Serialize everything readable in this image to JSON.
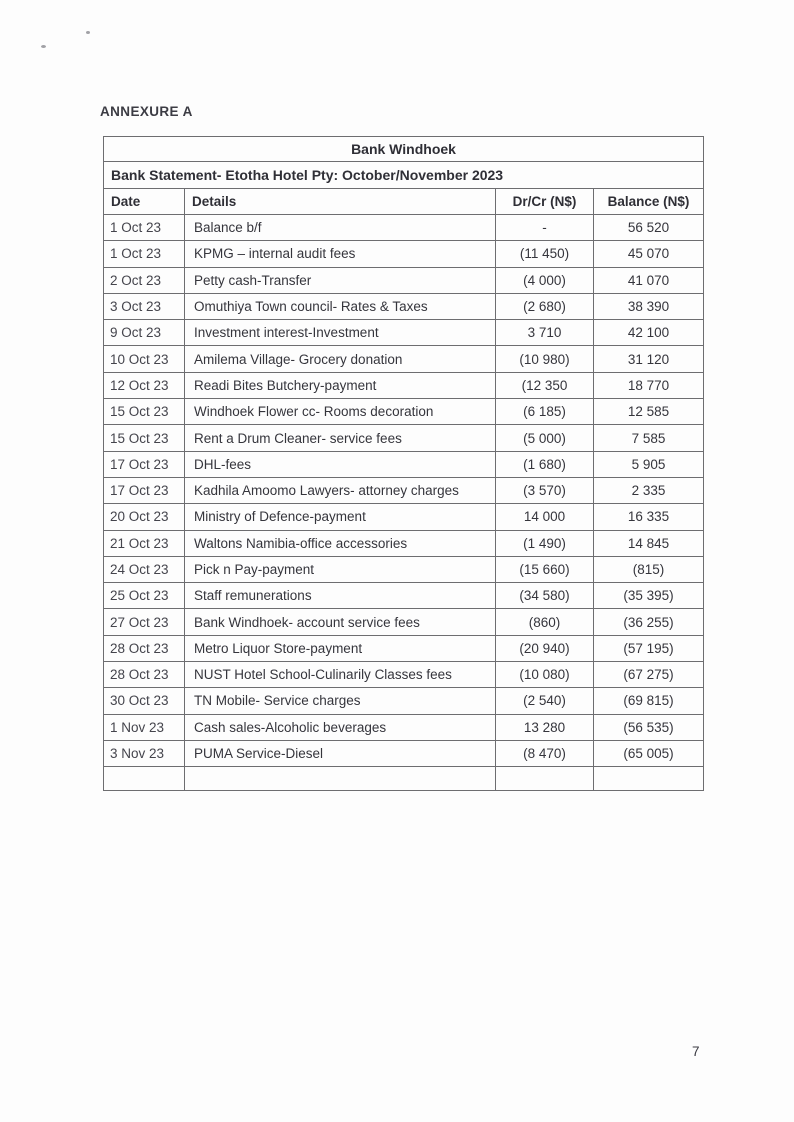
{
  "page": {
    "annexure_label": "ANNEXURE A",
    "page_number": "7"
  },
  "table": {
    "bank_title": "Bank Windhoek",
    "statement_title": "Bank Statement- Etotha Hotel Pty: October/November 2023",
    "columns": [
      "Date",
      "Details",
      "Dr/Cr (N$)",
      "Balance (N$)"
    ],
    "rows": [
      {
        "date": "1 Oct 23",
        "details": "Balance b/f",
        "drcr": "-",
        "balance": "56 520"
      },
      {
        "date": "1 Oct 23",
        "details": "KPMG – internal audit fees",
        "drcr": "(11 450)",
        "balance": "45 070"
      },
      {
        "date": "2 Oct 23",
        "details": "Petty cash-Transfer",
        "drcr": "(4 000)",
        "balance": "41 070"
      },
      {
        "date": "3 Oct 23",
        "details": "Omuthiya Town council- Rates & Taxes",
        "drcr": "(2 680)",
        "balance": "38 390"
      },
      {
        "date": "9 Oct 23",
        "details": "Investment interest-Investment",
        "drcr": "3 710",
        "balance": "42 100"
      },
      {
        "date": "10 Oct 23",
        "details": "Amilema Village- Grocery donation",
        "drcr": "(10 980)",
        "balance": "31 120"
      },
      {
        "date": "12 Oct 23",
        "details": "Readi Bites Butchery-payment",
        "drcr": "(12 350",
        "balance": "18 770"
      },
      {
        "date": "15 Oct 23",
        "details": "Windhoek Flower cc- Rooms decoration",
        "drcr": "(6 185)",
        "balance": "12 585"
      },
      {
        "date": "15 Oct 23",
        "details": "Rent a Drum Cleaner- service fees",
        "drcr": "(5 000)",
        "balance": "7 585"
      },
      {
        "date": "17 Oct 23",
        "details": "DHL-fees",
        "drcr": "(1 680)",
        "balance": "5 905"
      },
      {
        "date": "17 Oct 23",
        "details": "Kadhila Amoomo Lawyers- attorney charges",
        "drcr": "(3 570)",
        "balance": "2 335"
      },
      {
        "date": "20 Oct 23",
        "details": "Ministry of Defence-payment",
        "drcr": "14 000",
        "balance": "16 335"
      },
      {
        "date": "21 Oct 23",
        "details": "Waltons Namibia-office accessories",
        "drcr": "(1 490)",
        "balance": "14 845"
      },
      {
        "date": "24 Oct 23",
        "details": "Pick n Pay-payment",
        "drcr": "(15 660)",
        "balance": "(815)"
      },
      {
        "date": "25 Oct 23",
        "details": "Staff remunerations",
        "drcr": "(34 580)",
        "balance": "(35 395)"
      },
      {
        "date": "27 Oct 23",
        "details": "Bank Windhoek- account service fees",
        "drcr": "(860)",
        "balance": "(36 255)"
      },
      {
        "date": "28 Oct 23",
        "details": "Metro Liquor Store-payment",
        "drcr": "(20 940)",
        "balance": "(57 195)"
      },
      {
        "date": "28 Oct 23",
        "details": "NUST Hotel School-Culinarily Classes fees",
        "drcr": "(10 080)",
        "balance": "(67 275)"
      },
      {
        "date": "30 Oct 23",
        "details": "TN Mobile- Service charges",
        "drcr": "(2 540)",
        "balance": "(69 815)"
      },
      {
        "date": "1 Nov 23",
        "details": "Cash sales-Alcoholic beverages",
        "drcr": "13 280",
        "balance": "(56 535)"
      },
      {
        "date": "3 Nov 23",
        "details": "PUMA Service-Diesel",
        "drcr": "(8 470)",
        "balance": "(65 005)"
      },
      {
        "date": "",
        "details": "",
        "drcr": "",
        "balance": ""
      }
    ]
  }
}
